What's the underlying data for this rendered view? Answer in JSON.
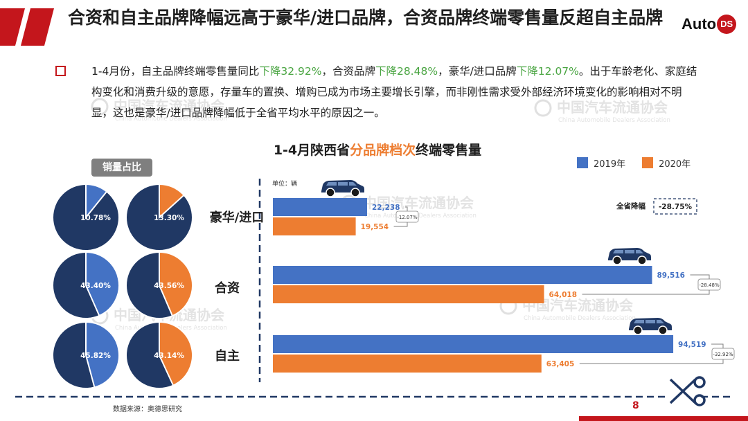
{
  "header": {
    "title": "合资和自主品牌降幅远高于豪华/进口品牌，合资品牌终端零售量反超自主品牌",
    "logo_text": "Auto",
    "logo_badge": "DS"
  },
  "intro": {
    "p1": "1-4月份，自主品牌终端零售量同比",
    "g1": "下降32.92%",
    "p2": "，合资品牌",
    "g2": "下降28.48%",
    "p3": "，豪华/进口品牌",
    "g3": "下降12.07%",
    "p4": "。出于车龄老化、家庭结构变化和消费升级的意愿，存量车的置换、增购已成为市场主要增长引擎，而非刚性需求受外部经济环境变化的影响相对不明显，这也是豪华/进口品牌降幅低于全省平均水平的原因之一。"
  },
  "chart_title": {
    "prefix": "1-4月陕西省",
    "highlight": "分品牌档次",
    "suffix": "终端零售量"
  },
  "share_label": "销量占比",
  "unit_label": "单位：辆",
  "overall": {
    "label": "全省降幅",
    "value": "-28.75%"
  },
  "watermark": {
    "cn": "中国汽车流通协会",
    "en": "China Automobile Dealers Association"
  },
  "footer": {
    "source": "数据来源：奥德思研究",
    "page": "8"
  },
  "colors": {
    "series_2019": "#4472c4",
    "series_2020": "#ed7d31",
    "pie_base": "#203864",
    "accent_red": "#c4161c",
    "text_green": "#4aa542"
  },
  "chart_data": [
    {
      "type": "bar",
      "orientation": "horizontal",
      "title": "1-4月陕西省分品牌档次终端零售量",
      "unit": "单位：辆",
      "categories": [
        "豪华/进口",
        "合资",
        "自主"
      ],
      "series": [
        {
          "name": "2019年",
          "values": [
            22238,
            89516,
            94519
          ],
          "labels": [
            "22,238",
            "89,516",
            "94,519"
          ]
        },
        {
          "name": "2020年",
          "values": [
            19554,
            64018,
            63405
          ],
          "labels": [
            "19,554",
            "64,018",
            "63,405"
          ]
        }
      ],
      "changes": [
        "-12.07%",
        "-28.48%",
        "-32.92%"
      ],
      "overall_change": "-28.75%",
      "xlim": [
        0,
        100000
      ],
      "legend": "top-right"
    },
    {
      "type": "pie",
      "title": "销量占比",
      "series": [
        {
          "name": "2019年",
          "values": [
            10.78,
            43.4,
            45.82
          ],
          "labels": [
            "10.78%",
            "43.40%",
            "45.82%"
          ]
        },
        {
          "name": "2020年",
          "values": [
            13.3,
            43.56,
            43.14
          ],
          "labels": [
            "13.30%",
            "43.56%",
            "43.14%"
          ]
        }
      ],
      "categories": [
        "豪华/进口",
        "合资",
        "自主"
      ]
    }
  ]
}
